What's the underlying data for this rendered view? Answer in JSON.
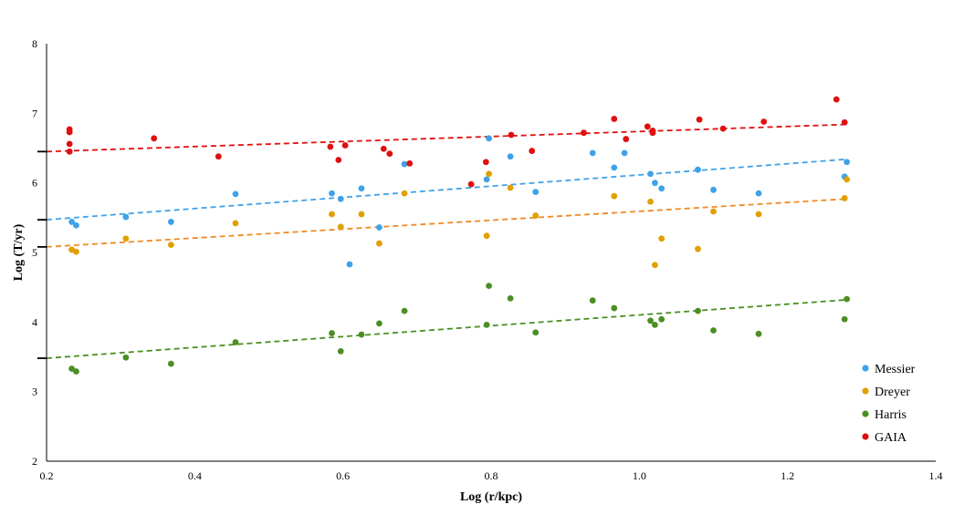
{
  "chart_data": {
    "type": "scatter",
    "title": "",
    "xlabel": "Log (r/kpc)",
    "ylabel": "Log (T/yr)",
    "xlim": [
      0.2,
      1.4
    ],
    "ylim": [
      2,
      8
    ],
    "x_ticks": [
      "0.2",
      "0.4",
      "0.6",
      "0.8",
      "1.0",
      "1.2",
      "1.4"
    ],
    "y_ticks": [
      "2",
      "3",
      "4",
      "5",
      "6",
      "7",
      "8"
    ],
    "grid": false,
    "legend_position": "bottom-right",
    "trendline_style": "dashed linear",
    "series": [
      {
        "name": "Messier",
        "color": "#3fa2e8",
        "trend_color": "#3fa2e8",
        "trend": [
          [
            0.2,
            5.47
          ],
          [
            1.28,
            6.34
          ]
        ],
        "points": [
          [
            0.234,
            5.44
          ],
          [
            0.24,
            5.39
          ],
          [
            0.307,
            5.51
          ],
          [
            0.368,
            5.44
          ],
          [
            0.455,
            5.84
          ],
          [
            0.585,
            5.85
          ],
          [
            0.597,
            5.77
          ],
          [
            0.609,
            4.83
          ],
          [
            0.625,
            5.92
          ],
          [
            0.649,
            5.36
          ],
          [
            0.683,
            6.27
          ],
          [
            0.794,
            6.05
          ],
          [
            0.797,
            6.64
          ],
          [
            0.826,
            6.38
          ],
          [
            0.86,
            5.87
          ],
          [
            0.937,
            6.43
          ],
          [
            0.966,
            6.22
          ],
          [
            0.98,
            6.43
          ],
          [
            1.015,
            6.13
          ],
          [
            1.021,
            6.0
          ],
          [
            1.03,
            5.92
          ],
          [
            1.079,
            6.19
          ],
          [
            1.1,
            5.9
          ],
          [
            1.161,
            5.85
          ],
          [
            1.277,
            6.09
          ],
          [
            1.28,
            6.3
          ]
        ]
      },
      {
        "name": "Dreyer",
        "color": "#e0a000",
        "trend_color": "#ee8a22",
        "trend": [
          [
            0.2,
            5.08
          ],
          [
            1.28,
            5.77
          ]
        ],
        "points": [
          [
            0.234,
            5.04
          ],
          [
            0.24,
            5.01
          ],
          [
            0.307,
            5.2
          ],
          [
            0.368,
            5.11
          ],
          [
            0.455,
            5.42
          ],
          [
            0.585,
            5.55
          ],
          [
            0.597,
            5.37
          ],
          [
            0.625,
            5.55
          ],
          [
            0.649,
            5.13
          ],
          [
            0.683,
            5.85
          ],
          [
            0.794,
            5.24
          ],
          [
            0.797,
            6.13
          ],
          [
            0.826,
            5.93
          ],
          [
            0.86,
            5.53
          ],
          [
            0.966,
            5.81
          ],
          [
            1.015,
            5.73
          ],
          [
            1.021,
            4.82
          ],
          [
            1.03,
            5.2
          ],
          [
            1.079,
            5.05
          ],
          [
            1.1,
            5.59
          ],
          [
            1.161,
            5.55
          ],
          [
            1.277,
            5.78
          ],
          [
            1.28,
            6.05
          ]
        ]
      },
      {
        "name": "Harris",
        "color": "#4b8f22",
        "trend_color": "#4b8f22",
        "trend": [
          [
            0.2,
            3.48
          ],
          [
            1.28,
            4.32
          ]
        ],
        "points": [
          [
            0.234,
            3.33
          ],
          [
            0.24,
            3.29
          ],
          [
            0.307,
            3.49
          ],
          [
            0.368,
            3.4
          ],
          [
            0.455,
            3.71
          ],
          [
            0.585,
            3.84
          ],
          [
            0.597,
            3.58
          ],
          [
            0.625,
            3.82
          ],
          [
            0.649,
            3.98
          ],
          [
            0.683,
            4.16
          ],
          [
            0.794,
            3.96
          ],
          [
            0.797,
            4.52
          ],
          [
            0.826,
            4.34
          ],
          [
            0.86,
            3.85
          ],
          [
            0.937,
            4.31
          ],
          [
            0.966,
            4.2
          ],
          [
            1.015,
            4.02
          ],
          [
            1.021,
            3.96
          ],
          [
            1.03,
            4.04
          ],
          [
            1.079,
            4.16
          ],
          [
            1.1,
            3.88
          ],
          [
            1.161,
            3.83
          ],
          [
            1.277,
            4.04
          ],
          [
            1.28,
            4.33
          ]
        ]
      },
      {
        "name": "GAIA",
        "color": "#e01010",
        "trend_color": "#e01010",
        "trend": [
          [
            0.2,
            6.45
          ],
          [
            1.28,
            6.84
          ]
        ],
        "points": [
          [
            0.231,
            6.77
          ],
          [
            0.231,
            6.73
          ],
          [
            0.231,
            6.56
          ],
          [
            0.231,
            6.45
          ],
          [
            0.345,
            6.64
          ],
          [
            0.432,
            6.38
          ],
          [
            0.583,
            6.52
          ],
          [
            0.594,
            6.33
          ],
          [
            0.603,
            6.54
          ],
          [
            0.655,
            6.49
          ],
          [
            0.663,
            6.42
          ],
          [
            0.69,
            6.28
          ],
          [
            0.773,
            5.98
          ],
          [
            0.793,
            6.3
          ],
          [
            0.827,
            6.69
          ],
          [
            0.855,
            6.46
          ],
          [
            0.925,
            6.72
          ],
          [
            0.966,
            6.92
          ],
          [
            0.982,
            6.63
          ],
          [
            1.011,
            6.81
          ],
          [
            1.018,
            6.75
          ],
          [
            1.018,
            6.72
          ],
          [
            1.081,
            6.91
          ],
          [
            1.113,
            6.78
          ],
          [
            1.168,
            6.88
          ],
          [
            1.266,
            7.2
          ],
          [
            1.277,
            6.87
          ]
        ]
      }
    ]
  }
}
